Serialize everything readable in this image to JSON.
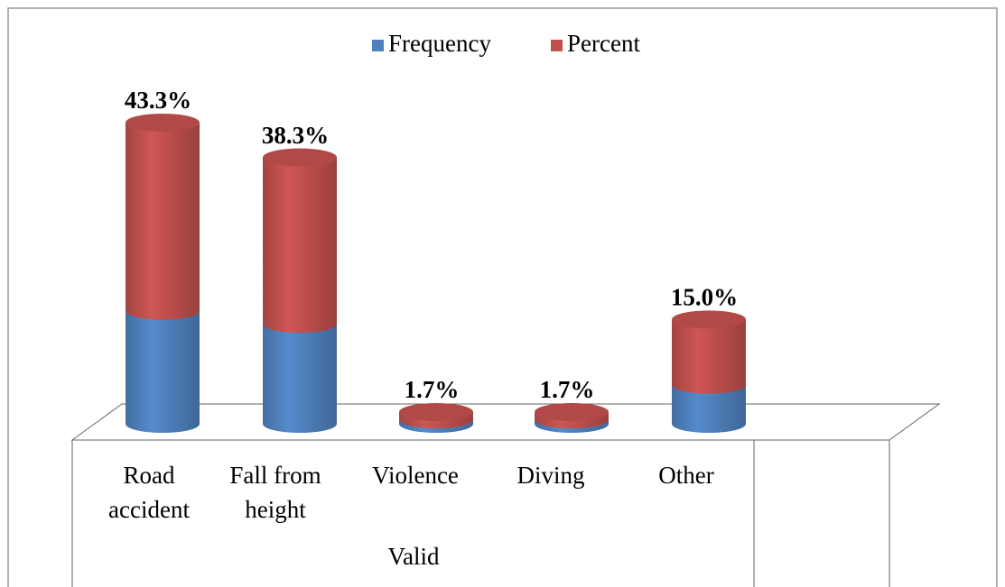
{
  "chart_data": {
    "type": "cylinder-stacked",
    "categories": [
      "Road accident",
      "Fall from height",
      "Violence",
      "Diving",
      "Other"
    ],
    "group_label": "Valid",
    "series": [
      {
        "name": "Frequency",
        "color": "#4f81bd",
        "values": [
          26,
          23,
          1,
          1,
          9
        ]
      },
      {
        "name": "Percent",
        "color": "#c0504d",
        "values": [
          43.3,
          38.3,
          1.7,
          1.7,
          15.0
        ],
        "value_labels": [
          "43.3%",
          "38.3%",
          "1.7%",
          "1.7%",
          "15.0%"
        ]
      }
    ],
    "legend": "top"
  }
}
